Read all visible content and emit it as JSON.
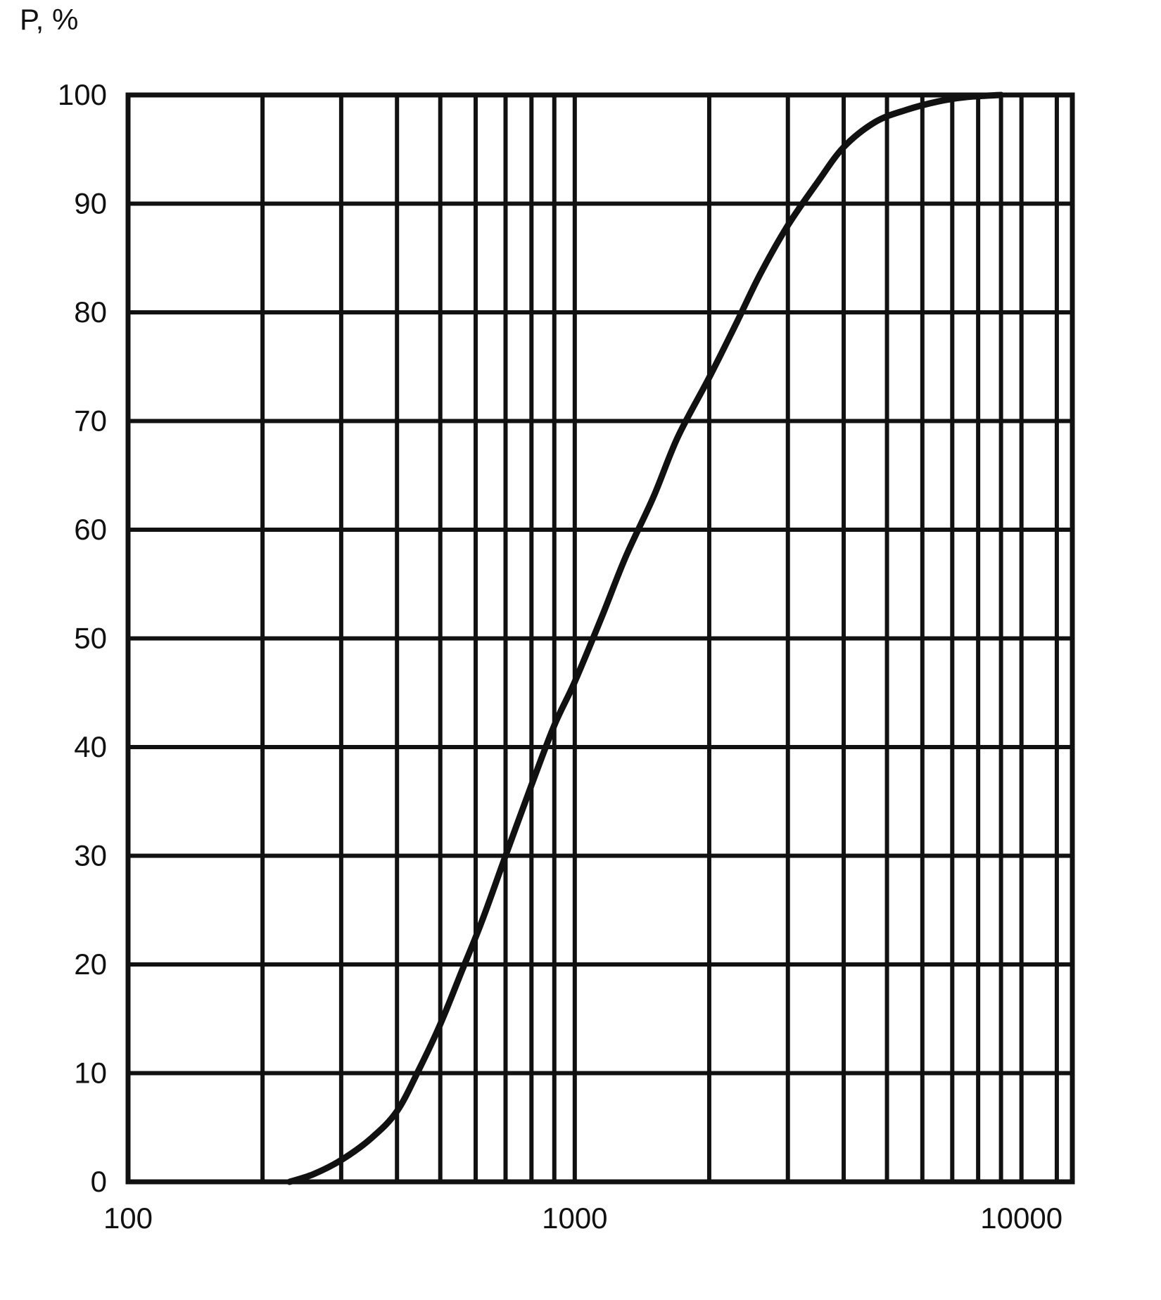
{
  "chart_data": {
    "type": "line",
    "title": "",
    "ylabel": "P, %",
    "xlabel": "",
    "x_scale": "log",
    "xlim": [
      100,
      13000
    ],
    "ylim": [
      0,
      100
    ],
    "grid": true,
    "x_tick_labels": [
      {
        "value": 100,
        "label": "100"
      },
      {
        "value": 1000,
        "label": "1000"
      },
      {
        "value": 10000,
        "label": "10000"
      }
    ],
    "y_tick_labels": [
      {
        "value": 100,
        "label": "100"
      },
      {
        "value": 90,
        "label": "90"
      },
      {
        "value": 80,
        "label": "80"
      },
      {
        "value": 70,
        "label": "70"
      },
      {
        "value": 60,
        "label": "60"
      },
      {
        "value": 50,
        "label": "50"
      },
      {
        "value": 40,
        "label": "40"
      },
      {
        "value": 30,
        "label": "30"
      },
      {
        "value": 20,
        "label": "20"
      },
      {
        "value": 10,
        "label": "10"
      },
      {
        "value": 0,
        "label": "0"
      }
    ],
    "x_grid_values": [
      200,
      300,
      400,
      500,
      600,
      700,
      800,
      900,
      1000,
      2000,
      3000,
      4000,
      5000,
      6000,
      7000,
      8000,
      9000,
      10000,
      12000
    ],
    "y_grid_values": [
      10,
      20,
      30,
      40,
      50,
      60,
      70,
      80,
      90
    ],
    "series": [
      {
        "x": [
          230,
          260,
          300,
          350,
          400,
          450,
          500,
          560,
          620,
          700,
          800,
          900,
          1000,
          1150,
          1300,
          1500,
          1700,
          2000,
          2300,
          2600,
          3000,
          3500,
          4000,
          4700,
          5500,
          6500,
          7500,
          9000
        ],
        "y": [
          0,
          0.7,
          2,
          4,
          6.5,
          10.5,
          14.5,
          19.5,
          24,
          30,
          36.5,
          42,
          46,
          52,
          57.5,
          63,
          68.5,
          74,
          79,
          83.5,
          88,
          92,
          95.2,
          97.5,
          98.6,
          99.4,
          99.8,
          100
        ]
      }
    ],
    "colors": {
      "line": "#111111",
      "grid": "#111111",
      "background": "#ffffff"
    }
  }
}
